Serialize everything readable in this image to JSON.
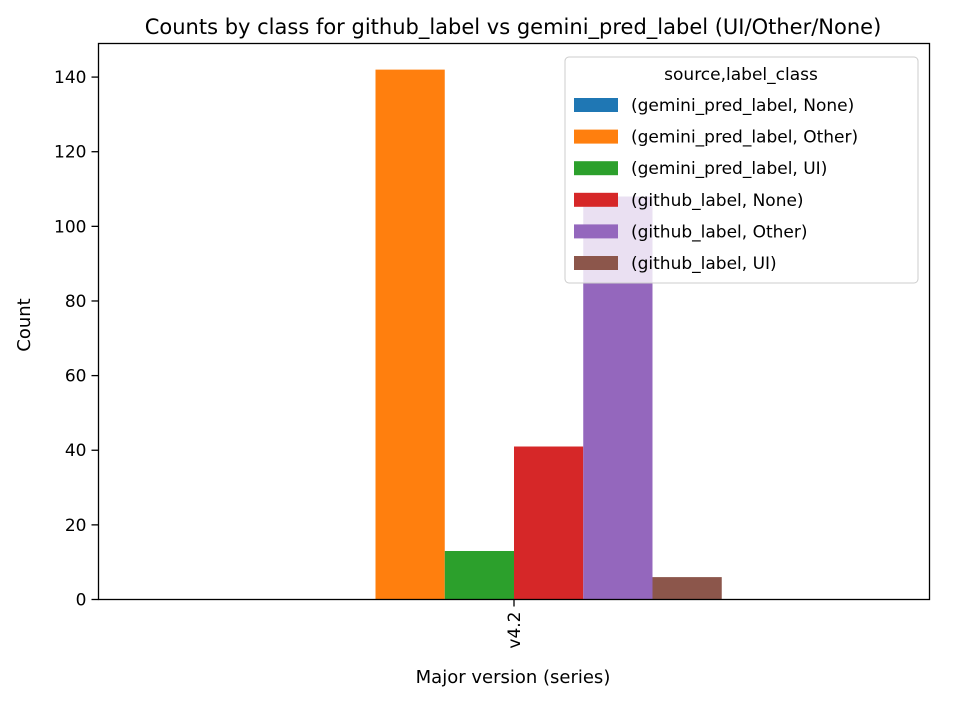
{
  "chart_data": {
    "type": "bar",
    "title": "Counts by class for github_label vs gemini_pred_label (UI/Other/None)",
    "xlabel": "Major version (series)",
    "ylabel": "Count",
    "categories": [
      "v4.2"
    ],
    "ylim": [
      0,
      149
    ],
    "yticks": [
      0,
      20,
      40,
      60,
      80,
      100,
      120,
      140
    ],
    "grid": false,
    "legend": {
      "title": "source,label_class",
      "position": "top-right"
    },
    "series": [
      {
        "name": "(gemini_pred_label, None)",
        "values": [
          0
        ],
        "color": "#1f77b4"
      },
      {
        "name": "(gemini_pred_label, Other)",
        "values": [
          142
        ],
        "color": "#ff7f0e"
      },
      {
        "name": "(gemini_pred_label, UI)",
        "values": [
          13
        ],
        "color": "#2ca02c"
      },
      {
        "name": "(github_label, None)",
        "values": [
          41
        ],
        "color": "#d62728"
      },
      {
        "name": "(github_label, Other)",
        "values": [
          108
        ],
        "color": "#9467bd"
      },
      {
        "name": "(github_label, UI)",
        "values": [
          6
        ],
        "color": "#8c564b"
      }
    ]
  }
}
